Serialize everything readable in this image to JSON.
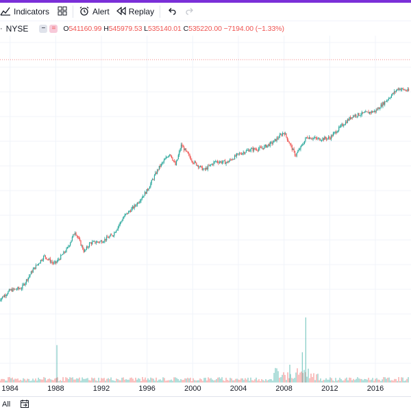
{
  "toolbar": {
    "indicators_label": "Indicators",
    "alert_label": "Alert",
    "replay_label": "Replay"
  },
  "symbol": {
    "name": "NYSE",
    "open_prefix": "O",
    "open": "541160.99",
    "high_prefix": "H",
    "high": "545979.53",
    "low_prefix": "L",
    "low": "535140.01",
    "close_prefix": "C",
    "close": "535220.00",
    "change": "−7194.00 (−1.33%)"
  },
  "colors": {
    "up": "#26a69a",
    "down": "#ef5350",
    "accent": "#7b2fd8",
    "grid": "#f0f3fa"
  },
  "icons": {
    "indicators": "chart-indicators-icon",
    "layout": "layout-grid-icon",
    "alert": "alarm-clock-icon",
    "replay": "rewind-icon",
    "undo": "undo-icon",
    "redo": "redo-icon",
    "date_range": "calendar-goto-icon"
  },
  "range": {
    "all_label": "All"
  },
  "chart_data": {
    "type": "candlestick",
    "x_ticks": [
      "1984",
      "1988",
      "1992",
      "1996",
      "2000",
      "2004",
      "2008",
      "2012",
      "2016"
    ],
    "x_range": [
      1983,
      2019
    ],
    "price_trend": [
      [
        1983.0,
        8.2
      ],
      [
        1984.0,
        9.9
      ],
      [
        1985.0,
        10.3
      ],
      [
        1986.0,
        13.4
      ],
      [
        1987.0,
        15.8
      ],
      [
        1987.8,
        14.5
      ],
      [
        1988.0,
        14.6
      ],
      [
        1989.0,
        17.0
      ],
      [
        1989.7,
        20.0
      ],
      [
        1990.5,
        16.5
      ],
      [
        1991.0,
        18.0
      ],
      [
        1992.0,
        18.3
      ],
      [
        1993.0,
        19.4
      ],
      [
        1994.0,
        22.6
      ],
      [
        1995.0,
        24.5
      ],
      [
        1996.0,
        27.0
      ],
      [
        1997.0,
        30.8
      ],
      [
        1998.0,
        33.4
      ],
      [
        1998.5,
        31.3
      ],
      [
        1999.0,
        34.8
      ],
      [
        2000.0,
        32.0
      ],
      [
        2001.0,
        30.5
      ],
      [
        2002.0,
        32.0
      ],
      [
        2003.0,
        31.8
      ],
      [
        2004.0,
        33.2
      ],
      [
        2005.0,
        34.0
      ],
      [
        2006.0,
        34.2
      ],
      [
        2007.0,
        35.2
      ],
      [
        2008.0,
        37.0
      ],
      [
        2009.0,
        33.0
      ],
      [
        2009.5,
        34.5
      ],
      [
        2010.0,
        36.2
      ],
      [
        2011.0,
        35.8
      ],
      [
        2012.0,
        36.0
      ],
      [
        2013.0,
        38.0
      ],
      [
        2014.0,
        39.8
      ],
      [
        2015.0,
        40.2
      ],
      [
        2016.0,
        40.6
      ],
      [
        2017.0,
        42.5
      ],
      [
        2018.0,
        44.5
      ],
      [
        2019.0,
        44.0
      ]
    ],
    "volume_spikes": [
      [
        1988.1,
        0.42
      ],
      [
        2008.5,
        0.2
      ],
      [
        2009.9,
        0.73
      ],
      [
        2009.6,
        0.34
      ]
    ]
  }
}
